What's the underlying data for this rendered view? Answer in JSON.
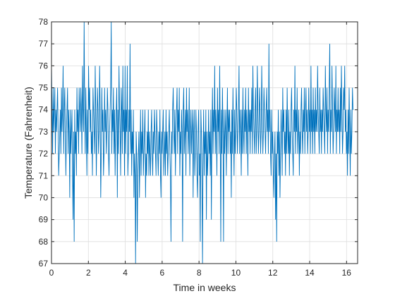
{
  "chart_data": {
    "type": "line",
    "xlabel": "Time in weeks",
    "ylabel": "Temperature (Fahrenheit)",
    "xlim": [
      0,
      16.6
    ],
    "ylim": [
      67,
      78
    ],
    "xticks": [
      0,
      2,
      4,
      6,
      8,
      10,
      12,
      14,
      16
    ],
    "yticks": [
      67,
      68,
      69,
      70,
      71,
      72,
      73,
      74,
      75,
      76,
      77,
      78
    ],
    "grid": true,
    "line_color": "#0072BD",
    "sampling_interval_weeks": 0.03,
    "series": [
      {
        "values": [
          76,
          74,
          72,
          75,
          73,
          74,
          75,
          72,
          74,
          73,
          74,
          75,
          73,
          71,
          72,
          73,
          74,
          72,
          75,
          73,
          74,
          76,
          72,
          74,
          75,
          73,
          71,
          73,
          74,
          75,
          72,
          74,
          73,
          70,
          74,
          72,
          73,
          74,
          71,
          69,
          73,
          68,
          74,
          72,
          73,
          71,
          75,
          73,
          74,
          72,
          75,
          74,
          73,
          75,
          74,
          72,
          76,
          74,
          73,
          78,
          74,
          72,
          75,
          73,
          71,
          74,
          72,
          76,
          74,
          75,
          73,
          74,
          72,
          73,
          71,
          75,
          74,
          73,
          72,
          76,
          74,
          71,
          73,
          75,
          74,
          72,
          73,
          76,
          74,
          70,
          72,
          75,
          73,
          74,
          71,
          72,
          75,
          73,
          74,
          72,
          73,
          75,
          74,
          72,
          71,
          73,
          74,
          75,
          78,
          72,
          74,
          73,
          75,
          72,
          74,
          71,
          73,
          74,
          75,
          70,
          74,
          72,
          76,
          74,
          73,
          71,
          75,
          74,
          72,
          76,
          73,
          74,
          71,
          76,
          72,
          74,
          73,
          76,
          71,
          72,
          74,
          73,
          77,
          72,
          74,
          71,
          73,
          72,
          74,
          70,
          72,
          71,
          67,
          73,
          72,
          68,
          71,
          72,
          73,
          70,
          72,
          74,
          71,
          73,
          72,
          74,
          71,
          72,
          73,
          74,
          70,
          72,
          71,
          73,
          72,
          74,
          71,
          73,
          72,
          71,
          73,
          74,
          72,
          71,
          73,
          72,
          74,
          73,
          72,
          71,
          74,
          73,
          72,
          71,
          73,
          72,
          74,
          71,
          70,
          73,
          72,
          73,
          74,
          71,
          72,
          73,
          71,
          74,
          72,
          73,
          71,
          72,
          73,
          74,
          72,
          71,
          68,
          73,
          72,
          74,
          75,
          73,
          72,
          74,
          71,
          73,
          74,
          75,
          72,
          74,
          73,
          75,
          71,
          73,
          72,
          74,
          73,
          68,
          74,
          75,
          72,
          73,
          74,
          71,
          75,
          73,
          74,
          72,
          73,
          75,
          71,
          73,
          74,
          72,
          73,
          74,
          70,
          73,
          74,
          71,
          72,
          74,
          73,
          71,
          70,
          73,
          74,
          71,
          72,
          68,
          74,
          73,
          71,
          67,
          72,
          74,
          71,
          73,
          72,
          74,
          69,
          73,
          71,
          72,
          74,
          72,
          73,
          71,
          74,
          69,
          73,
          75,
          72,
          74,
          73,
          76,
          72,
          74,
          73,
          71,
          75,
          73,
          74,
          72,
          76,
          73,
          68,
          74,
          72,
          75,
          73,
          68,
          74,
          72,
          73,
          74,
          71,
          73,
          75,
          72,
          74,
          73,
          74,
          72,
          73,
          70,
          74,
          72,
          75,
          73,
          71,
          74,
          72,
          73,
          75,
          74,
          72,
          73,
          74,
          76,
          72,
          74,
          73,
          71,
          74,
          72,
          75,
          73,
          72,
          74,
          73,
          75,
          72,
          74,
          73,
          71,
          75,
          73,
          74,
          72,
          74,
          73,
          75,
          72,
          76,
          74,
          73,
          72,
          74,
          75,
          72,
          73,
          76,
          74,
          72,
          73,
          75,
          74,
          72,
          73,
          76,
          74,
          72,
          73,
          75,
          74,
          73,
          72,
          74,
          75,
          73,
          74,
          72,
          77,
          73,
          74,
          72,
          71,
          74,
          72,
          73,
          71,
          70,
          72,
          73,
          69,
          72,
          68,
          73,
          72,
          74,
          71,
          73,
          70,
          72,
          74,
          73,
          71,
          75,
          73,
          74,
          72,
          73,
          71,
          74,
          72,
          75,
          73,
          72,
          74,
          71,
          73,
          72,
          74,
          75,
          73,
          72,
          71,
          74,
          73,
          76,
          72,
          74,
          73,
          75,
          72,
          73,
          74,
          71,
          73,
          72,
          74,
          75,
          73,
          72,
          74,
          73,
          75,
          72,
          74,
          75,
          73,
          74,
          72,
          73,
          75,
          73,
          74,
          72,
          76,
          73,
          74,
          72,
          75,
          73,
          74,
          72,
          75,
          73,
          74,
          73,
          76,
          74,
          73,
          72,
          75,
          73,
          74,
          72,
          74,
          73,
          75,
          74,
          73,
          72,
          76,
          74,
          73,
          75,
          72,
          74,
          73,
          75,
          77,
          72,
          74,
          73,
          76,
          74,
          72,
          73,
          75,
          74,
          73,
          76,
          72,
          74,
          73,
          75,
          73,
          74,
          72,
          75,
          73,
          76,
          74,
          72,
          73,
          75,
          74,
          76,
          73,
          74,
          72,
          73,
          71,
          74,
          72,
          75,
          73,
          71,
          74,
          72,
          73,
          75,
          74
        ]
      }
    ]
  }
}
